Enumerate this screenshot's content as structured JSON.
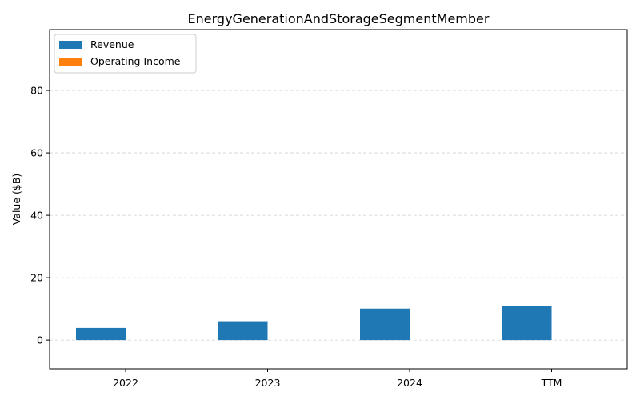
{
  "chart_data": {
    "type": "bar",
    "title": "EnergyGenerationAndStorageSegmentMember",
    "xlabel": "",
    "ylabel": "Value ($B)",
    "categories": [
      "2022",
      "2023",
      "2024",
      "TTM"
    ],
    "series": [
      {
        "name": "Revenue",
        "values": [
          3.9,
          6.04,
          10.09,
          10.8
        ],
        "color": "#1f77b4"
      },
      {
        "name": "Operating Income",
        "values": [
          0,
          0,
          0,
          0
        ],
        "color": "#ff7f0e"
      }
    ],
    "ylim": [
      -9.2,
      99.5
    ],
    "yticks": [
      0,
      20,
      40,
      60,
      80
    ],
    "grid": true,
    "legend_position": "top-left"
  }
}
